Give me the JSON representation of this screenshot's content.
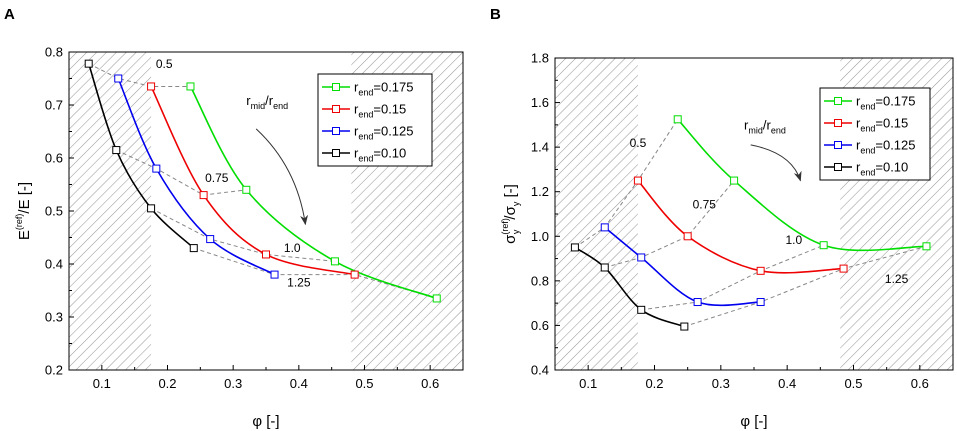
{
  "chart_data": [
    {
      "panel": "A",
      "type": "line",
      "xlabel": "φ [-]",
      "ylabel": {
        "base": "E",
        "sup": "(ref)",
        "rest": "/E [-]"
      },
      "xlim": [
        0.05,
        0.65
      ],
      "ylim": [
        0.2,
        0.8
      ],
      "xticks": [
        0.1,
        0.2,
        0.3,
        0.4,
        0.5,
        0.6
      ],
      "yticks": [
        0.2,
        0.3,
        0.4,
        0.5,
        0.6,
        0.7,
        0.8
      ],
      "shaded_x_ranges": [
        [
          0.05,
          0.175
        ],
        [
          0.48,
          0.65
        ]
      ],
      "series": [
        {
          "name": "r_end=0.175",
          "color": "#00dd00",
          "x": [
            0.235,
            0.32,
            0.455,
            0.61
          ],
          "y": [
            0.735,
            0.54,
            0.405,
            0.335
          ]
        },
        {
          "name": "r_end=0.15",
          "color": "#ee0000",
          "x": [
            0.175,
            0.255,
            0.35,
            0.485
          ],
          "y": [
            0.735,
            0.53,
            0.418,
            0.38
          ]
        },
        {
          "name": "r_end=0.125",
          "color": "#0000ee",
          "x": [
            0.125,
            0.183,
            0.265,
            0.363
          ],
          "y": [
            0.75,
            0.58,
            0.447,
            0.38
          ]
        },
        {
          "name": "r_end=0.10",
          "color": "#000000",
          "x": [
            0.08,
            0.122,
            0.175,
            0.24
          ],
          "y": [
            0.778,
            0.615,
            0.505,
            0.43
          ]
        }
      ],
      "dashed_connectors": [
        {
          "label": "0.5",
          "x": [
            0.08,
            0.125,
            0.175,
            0.235
          ],
          "y": [
            0.778,
            0.75,
            0.735,
            0.735
          ]
        },
        {
          "label": "0.75",
          "x": [
            0.122,
            0.183,
            0.255,
            0.32
          ],
          "y": [
            0.615,
            0.58,
            0.53,
            0.54
          ]
        },
        {
          "label": "1.0",
          "x": [
            0.175,
            0.265,
            0.35,
            0.455
          ],
          "y": [
            0.505,
            0.447,
            0.418,
            0.405
          ]
        },
        {
          "label": "1.25",
          "x": [
            0.24,
            0.363,
            0.485,
            0.61
          ],
          "y": [
            0.43,
            0.38,
            0.38,
            0.335
          ]
        }
      ],
      "connector_labels": [
        {
          "text": "0.5",
          "x": 0.195,
          "y": 0.77
        },
        {
          "text": "0.75",
          "x": 0.275,
          "y": 0.555
        },
        {
          "text": "1.0",
          "x": 0.39,
          "y": 0.423
        },
        {
          "text": "1.25",
          "x": 0.4,
          "y": 0.358
        }
      ],
      "ratio_label": {
        "text": "r",
        "sub1": "mid",
        "mid": "/r",
        "sub2": "end",
        "x": 0.32,
        "y": 0.7
      },
      "arrow": {
        "from": [
          0.335,
          0.655
        ],
        "to": [
          0.41,
          0.475
        ]
      },
      "legend_pos": "upper-right"
    },
    {
      "panel": "B",
      "type": "line",
      "xlabel": "φ [-]",
      "ylabel": {
        "base": "σ",
        "sup": "(ref)",
        "subA": "y",
        "mid": "/σ",
        "subB": "y",
        "rest": " [-]"
      },
      "xlim": [
        0.05,
        0.65
      ],
      "ylim": [
        0.4,
        1.8
      ],
      "xticks": [
        0.1,
        0.2,
        0.3,
        0.4,
        0.5,
        0.6
      ],
      "yticks": [
        0.4,
        0.6,
        0.8,
        1.0,
        1.2,
        1.4,
        1.6,
        1.8
      ],
      "shaded_x_ranges": [
        [
          0.05,
          0.175
        ],
        [
          0.48,
          0.65
        ]
      ],
      "series": [
        {
          "name": "r_end=0.175",
          "color": "#00dd00",
          "x": [
            0.235,
            0.32,
            0.455,
            0.61
          ],
          "y": [
            1.525,
            1.25,
            0.96,
            0.955
          ]
        },
        {
          "name": "r_end=0.15",
          "color": "#ee0000",
          "x": [
            0.175,
            0.25,
            0.36,
            0.485
          ],
          "y": [
            1.25,
            1.0,
            0.845,
            0.855
          ]
        },
        {
          "name": "r_end=0.125",
          "color": "#0000ee",
          "x": [
            0.125,
            0.18,
            0.265,
            0.36
          ],
          "y": [
            1.04,
            0.905,
            0.705,
            0.705
          ]
        },
        {
          "name": "r_end=0.10",
          "color": "#000000",
          "x": [
            0.08,
            0.125,
            0.18,
            0.245
          ],
          "y": [
            0.95,
            0.86,
            0.67,
            0.595
          ]
        }
      ],
      "dashed_connectors": [
        {
          "label": "0.5",
          "x": [
            0.08,
            0.125,
            0.175,
            0.235
          ],
          "y": [
            0.95,
            1.04,
            1.25,
            1.525
          ]
        },
        {
          "label": "0.75",
          "x": [
            0.125,
            0.18,
            0.25,
            0.32
          ],
          "y": [
            0.86,
            0.905,
            1.0,
            1.25
          ]
        },
        {
          "label": "1.0",
          "x": [
            0.18,
            0.265,
            0.36,
            0.455
          ],
          "y": [
            0.67,
            0.705,
            0.845,
            0.96
          ]
        },
        {
          "label": "1.25",
          "x": [
            0.245,
            0.36,
            0.485,
            0.61
          ],
          "y": [
            0.595,
            0.705,
            0.855,
            0.955
          ]
        }
      ],
      "connector_labels": [
        {
          "text": "0.5",
          "x": 0.175,
          "y": 1.4
        },
        {
          "text": "0.75",
          "x": 0.275,
          "y": 1.125
        },
        {
          "text": "1.0",
          "x": 0.41,
          "y": 0.965
        },
        {
          "text": "1.25",
          "x": 0.565,
          "y": 0.79
        }
      ],
      "ratio_label": {
        "text": "r",
        "sub1": "mid",
        "mid": "/r",
        "sub2": "end",
        "x": 0.335,
        "y": 1.48
      },
      "arrow": {
        "from": [
          0.345,
          1.41
        ],
        "to": [
          0.42,
          1.25
        ]
      },
      "legend_pos": "upper-right"
    }
  ],
  "legend": {
    "prefix": "r",
    "sub": "end",
    "labels": [
      "=0.175",
      "=0.15",
      "=0.125",
      "=0.10"
    ]
  }
}
